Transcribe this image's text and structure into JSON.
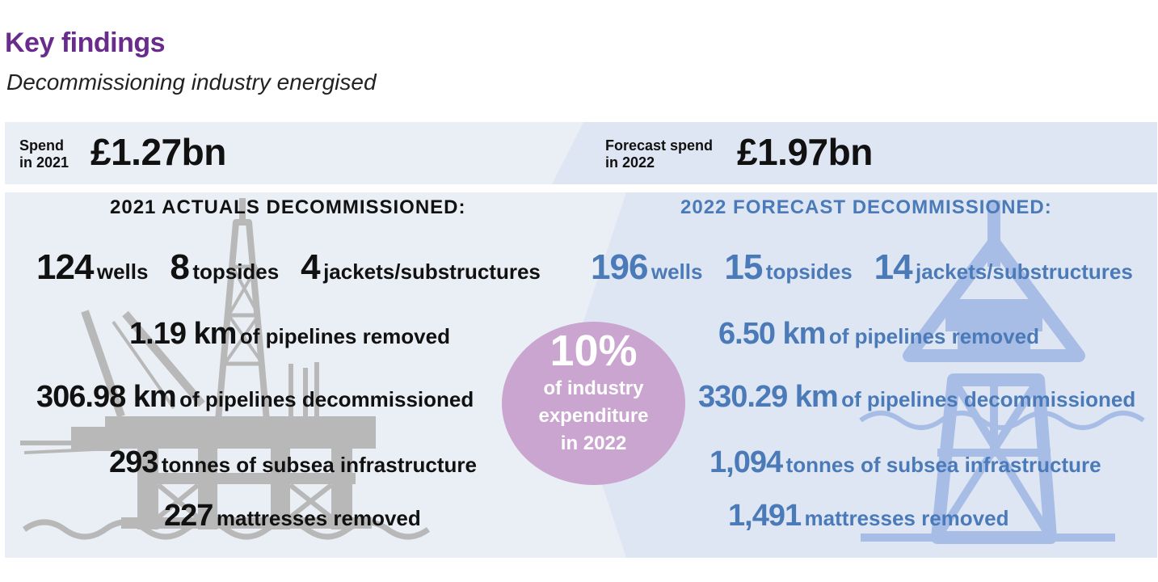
{
  "header": {
    "title": "Key findings",
    "subtitle": "Decommissioning industry energised"
  },
  "spend_2021": {
    "label_line1": "Spend",
    "label_line2": "in 2021",
    "value": "£1.27bn"
  },
  "spend_2022": {
    "label_line1": "Forecast spend",
    "label_line2": "in 2022",
    "value": "£1.97bn"
  },
  "actuals": {
    "heading": "2021 ACTUALS DECOMMISSIONED:",
    "wells": {
      "num": "124",
      "label": "wells"
    },
    "topsides": {
      "num": "8",
      "label": "topsides"
    },
    "jackets": {
      "num": "4",
      "label": "jackets/substructures"
    },
    "pipelines_removed": {
      "num": "1.19 km",
      "label": "of pipelines removed"
    },
    "pipelines_decommissioned": {
      "num": "306.98 km",
      "label": "of pipelines decommissioned"
    },
    "subsea": {
      "num": "293",
      "label": "tonnes of subsea infrastructure"
    },
    "mattresses": {
      "num": "227",
      "label": "mattresses removed"
    }
  },
  "forecast": {
    "heading": "2022 FORECAST DECOMMISSIONED:",
    "wells": {
      "num": "196",
      "label": "wells"
    },
    "topsides": {
      "num": "15",
      "label": "topsides"
    },
    "jackets": {
      "num": "14",
      "label": "jackets/substructures"
    },
    "pipelines_removed": {
      "num": "6.50 km",
      "label": "of pipelines removed"
    },
    "pipelines_decommissioned": {
      "num": "330.29 km",
      "label": "of pipelines decommissioned"
    },
    "subsea": {
      "num": "1,094",
      "label": "tonnes of subsea infrastructure"
    },
    "mattresses": {
      "num": "1,491",
      "label": "mattresses removed"
    }
  },
  "share": {
    "percent": "10%",
    "line1": "of industry",
    "line2": "expenditure",
    "line3": "in 2022"
  },
  "colors": {
    "title": "#6a2c8c",
    "forecast_text": "#4a7ab8",
    "circle": "#c9a5cf",
    "panel_left": "#eaeff5",
    "panel_right": "#dfe6f3",
    "rig_grey": "#b8b8b8",
    "rig_blue": "#a8bde6"
  },
  "icons": [
    "oil-rig-icon",
    "jacket-platform-icon"
  ]
}
